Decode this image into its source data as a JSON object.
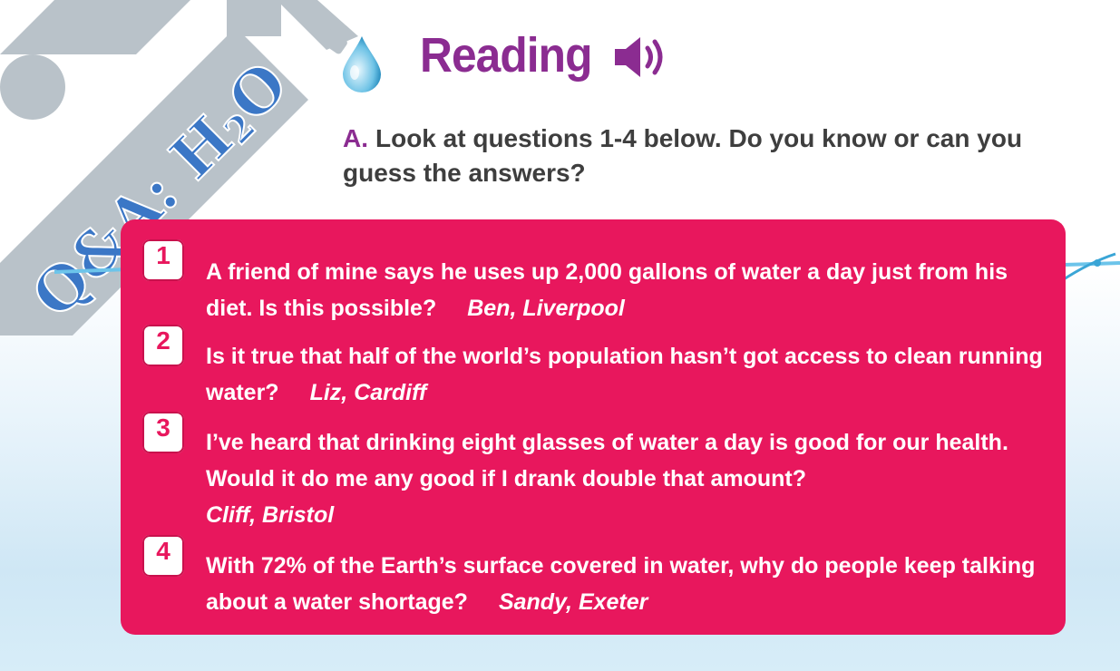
{
  "banner": {
    "text_main": "Q&A: H",
    "text_sub": "2",
    "text_end": "O"
  },
  "header": {
    "title": "Reading",
    "audio_icon": "speaker-icon"
  },
  "instruction": {
    "letter": "A.",
    "text": "Look at questions 1-4 below. Do you know or can you guess the answers?"
  },
  "questions": [
    {
      "number": "1",
      "text": "A friend of mine says he uses up 2,000 gallons of water a day just from his diet. Is this possible?",
      "author": "Ben, Liverpool"
    },
    {
      "number": "2",
      "text": "Is it true that half of the world’s population hasn’t got access to clean running water?",
      "author": "Liz, Cardiff"
    },
    {
      "number": "3",
      "text": "I’ve heard that drinking eight glasses of water a day is good for our health. Would it do me any good if I drank double that amount?",
      "author": "Cliff, Bristol"
    },
    {
      "number": "4",
      "text": "With 72% of the Earth’s surface covered in water, why do people keep talking about a water shortage?",
      "author": "Sandy, Exeter"
    }
  ],
  "colors": {
    "accent_pink": "#e8175d",
    "title_purple": "#8b2c91",
    "banner_blue": "#3b77c6",
    "pipe_gray": "#b9c2c9"
  }
}
